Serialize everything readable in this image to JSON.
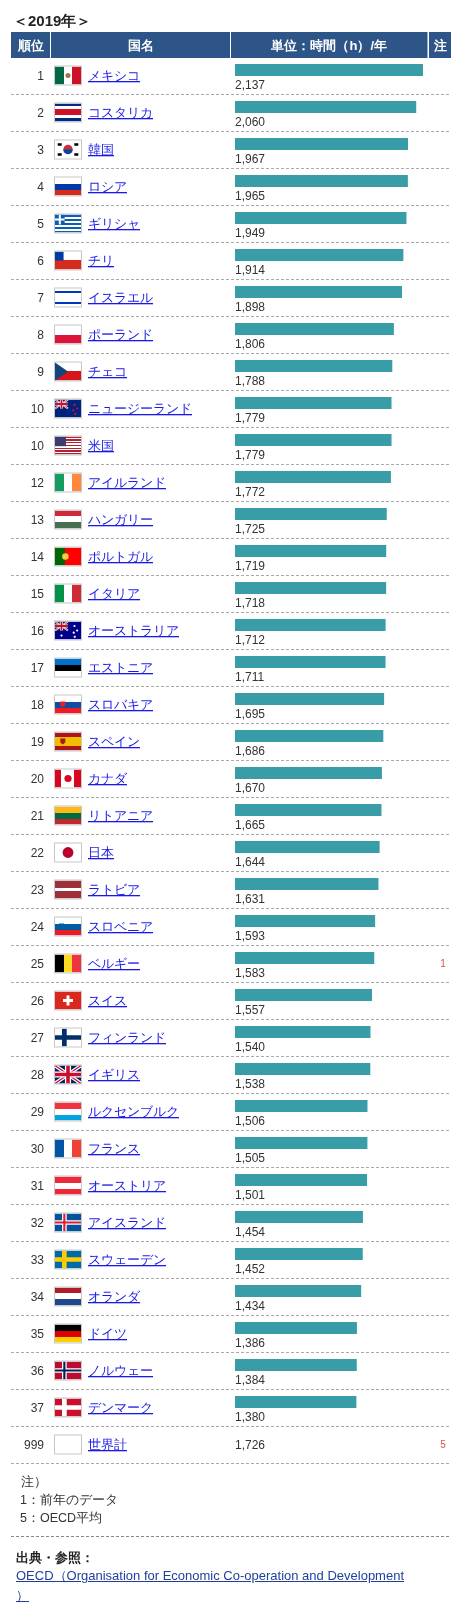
{
  "chart_data": {
    "type": "bar",
    "orientation": "horizontal",
    "title": "＜2019年＞",
    "ylabel": "国名",
    "xlabel": "単位：時間（h）/年",
    "color": "#389da7",
    "categories": [
      "メキシコ",
      "コスタリカ",
      "韓国",
      "ロシア",
      "ギリシャ",
      "チリ",
      "イスラエル",
      "ポーランド",
      "チェコ",
      "ニュージーランド",
      "米国",
      "アイルランド",
      "ハンガリー",
      "ポルトガル",
      "イタリア",
      "オーストラリア",
      "エストニア",
      "スロバキア",
      "スペイン",
      "カナダ",
      "リトアニア",
      "日本",
      "ラトビア",
      "スロベニア",
      "ベルギー",
      "スイス",
      "フィンランド",
      "イギリス",
      "ルクセンブルク",
      "フランス",
      "オーストリア",
      "アイスランド",
      "スウェーデン",
      "オランダ",
      "ドイツ",
      "ノルウェー",
      "デンマーク",
      "世界計"
    ],
    "y2_categories": [
      null,
      null,
      null,
      null,
      null,
      null,
      null,
      null,
      null,
      null,
      null,
      null,
      null,
      null,
      null,
      null,
      null,
      null,
      null,
      null,
      null,
      null,
      null,
      null,
      "1",
      null,
      null,
      null,
      null,
      null,
      null,
      null,
      null,
      null,
      null,
      null,
      null,
      "5"
    ],
    "values": [
      2137,
      2060,
      1967,
      1965,
      1949,
      1914,
      1898,
      1806,
      1788,
      1779,
      1779,
      1772,
      1725,
      1719,
      1718,
      1712,
      1711,
      1695,
      1686,
      1670,
      1665,
      1644,
      1631,
      1593,
      1583,
      1557,
      1540,
      1538,
      1506,
      1505,
      1501,
      1454,
      1452,
      1434,
      1386,
      1384,
      1380,
      null
    ],
    "value_labels": [
      "2,137",
      "2,060",
      "1,967",
      "1,965",
      "1,949",
      "1,914",
      "1,898",
      "1,806",
      "1,788",
      "1,779",
      "1,779",
      "1,772",
      "1,725",
      "1,719",
      "1,718",
      "1,712",
      "1,711",
      "1,695",
      "1,686",
      "1,670",
      "1,665",
      "1,644",
      "1,631",
      "1,593",
      "1,583",
      "1,557",
      "1,540",
      "1,538",
      "1,506",
      "1,505",
      "1,501",
      "1,454",
      "1,452",
      "1,434",
      "1,386",
      "1,384",
      "1,380",
      "1,726"
    ],
    "annotations": [
      "順位",
      "注",
      "1",
      "2",
      "3",
      "4",
      "5",
      "6",
      "7",
      "8",
      "9",
      "10",
      "10",
      "12",
      "13",
      "14",
      "15",
      "16",
      "17",
      "18",
      "19",
      "20",
      "21",
      "22",
      "23",
      "24",
      "25",
      "26",
      "27",
      "28",
      "29",
      "30",
      "31",
      "32",
      "33",
      "34",
      "35",
      "36",
      "37",
      "999",
      "注）",
      "1：前年のデータ",
      "5：OECD平均",
      "出典・参照：",
      "OECD（Organisation for Economic Co-operation and Development）"
    ]
  }
}
